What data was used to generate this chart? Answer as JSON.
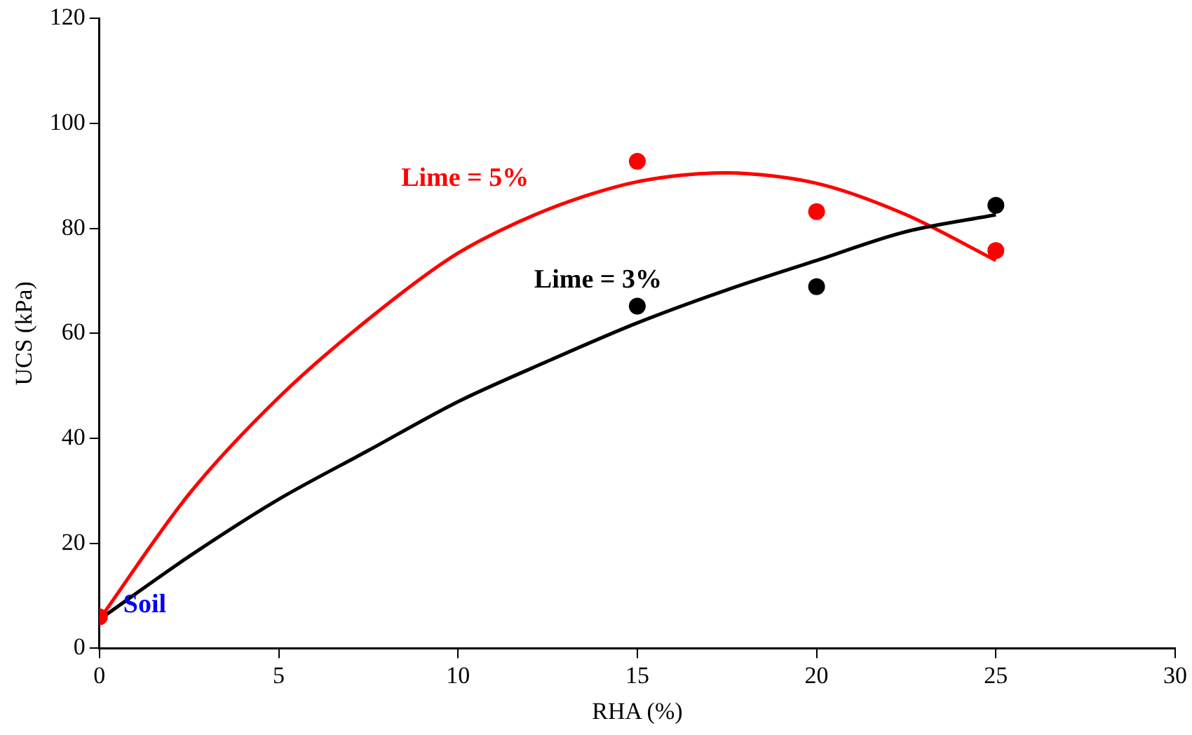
{
  "chart_data": {
    "type": "scatter",
    "xlabel": "RHA (%)",
    "ylabel": "UCS (kPa)",
    "xlim": [
      0,
      30
    ],
    "xticks": [
      0,
      5,
      10,
      15,
      20,
      25,
      30
    ],
    "ylim": [
      0,
      120
    ],
    "yticks": [
      0,
      20,
      40,
      60,
      80,
      100,
      120
    ],
    "grid": false,
    "legend": false,
    "marker": "circle",
    "series": [
      {
        "type": "line",
        "name": "Lime = 3%",
        "color": "#000000",
        "marker": "none",
        "x": [
          0,
          2.5,
          5,
          7.5,
          10,
          12.5,
          15,
          17.5,
          20,
          22.5,
          25
        ],
        "values": [
          5.5,
          17.5,
          28.4,
          37.7,
          47,
          54.7,
          62,
          68.3,
          73.9,
          79.4,
          82.6
        ]
      },
      {
        "type": "line",
        "name": "Lime = 5%",
        "color": "#ff0000",
        "marker": "none",
        "x": [
          0,
          2.5,
          5,
          7.5,
          10,
          12.5,
          15,
          17.5,
          20,
          22.5,
          25
        ],
        "values": [
          5.5,
          29.4,
          47.8,
          62.7,
          75.3,
          83.6,
          88.9,
          90.6,
          88.6,
          82.6,
          73.9
        ]
      },
      {
        "color": "#000000",
        "x": [
          15,
          20,
          25
        ],
        "values": [
          65.2,
          68.9,
          84.4
        ]
      },
      {
        "color": "#ff0000",
        "x": [
          0,
          15,
          20,
          25
        ],
        "values": [
          6,
          92.8,
          83.2,
          75.8
        ]
      }
    ],
    "annotations": [
      {
        "text": "Soil",
        "x": 0,
        "y": 6
      }
    ]
  }
}
